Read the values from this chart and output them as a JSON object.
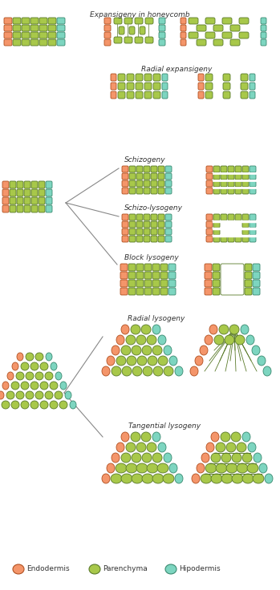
{
  "bg_color": "#ffffff",
  "endodermis_color": "#f4956a",
  "parenchyma_color": "#a8c84a",
  "hipodermis_color": "#7dd5c0",
  "cell_edge_color": "#5a7a2a",
  "endodermis_edge": "#b05020",
  "hipodermis_edge": "#3a8a70",
  "labels": {
    "expansigeny": "Expansigeny in honeycomb",
    "radial": "Radial expansigeny",
    "schizogeny": "Schizogeny",
    "schizo_lysogeny": "Schizo-lysogeny",
    "block_lysogeny": "Block lysogeny",
    "radial_lysogeny": "Radial lysogeny",
    "tangential_lysogeny": "Tangential lysogeny"
  },
  "legend": {
    "endodermis": "Endodermis",
    "parenchyma": "Parenchyma",
    "hipodermis": "Hipodermis"
  }
}
